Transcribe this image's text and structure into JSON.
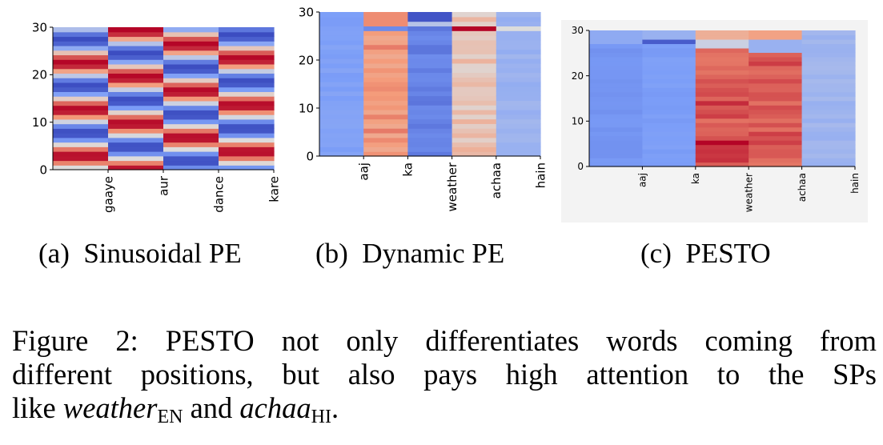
{
  "chart_data": [
    {
      "type": "heatmap",
      "yticks": [
        "0",
        "10",
        "20",
        "30"
      ],
      "ylim": [
        0,
        30
      ],
      "xticklabels": [
        "gaaye",
        "aur",
        "dance",
        "kare"
      ],
      "colormap": "coolwarm"
    },
    {
      "type": "heatmap",
      "yticks": [
        "0",
        "10",
        "20",
        "30"
      ],
      "ylim": [
        0,
        30
      ],
      "xticklabels": [
        "aaj",
        "ka",
        "weather",
        "achaa",
        "hain"
      ],
      "colormap": "coolwarm"
    },
    {
      "type": "heatmap",
      "yticks": [
        "0",
        "10",
        "20",
        "30"
      ],
      "ylim": [
        0,
        30
      ],
      "xticklabels": [
        "aaj",
        "ka",
        "weather",
        "achaa",
        "hain"
      ],
      "colormap": "coolwarm"
    }
  ],
  "subcaptions": [
    "(a) Sinusoidal PE",
    "(b) Dynamic PE",
    "(c) PESTO"
  ],
  "caption": {
    "line1": "Figure 2: PESTO not only differentiates words coming from",
    "line2": "different positions, but also pays high attention to the SPs",
    "line3_prefix": "like ",
    "word1": "weather",
    "sub1": "EN",
    "mid": " and ",
    "word2": "achaa",
    "sub2": "HI",
    "end": "."
  }
}
